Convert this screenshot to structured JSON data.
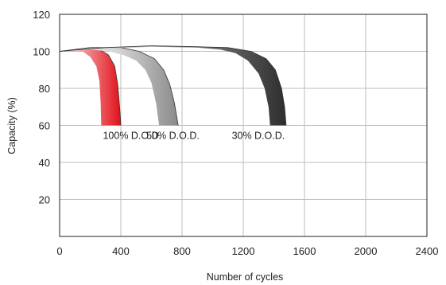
{
  "chart_data": {
    "type": "area",
    "xlabel": "Number of cycles",
    "ylabel": "Capacity (%)",
    "xlim": [
      0,
      2400
    ],
    "ylim": [
      0,
      120
    ],
    "x_ticks": [
      0,
      400,
      800,
      1200,
      1600,
      2000,
      2400
    ],
    "y_ticks": [
      20,
      40,
      60,
      80,
      100,
      120
    ],
    "grid": true,
    "series": [
      {
        "name": "100% D.O.D.",
        "color": "#e8141c",
        "upper": [
          [
            0,
            100
          ],
          [
            100,
            101
          ],
          [
            200,
            102
          ],
          [
            260,
            101
          ],
          [
            320,
            98
          ],
          [
            360,
            92
          ],
          [
            380,
            82
          ],
          [
            392,
            70
          ],
          [
            400,
            60
          ]
        ],
        "lower": [
          [
            0,
            100
          ],
          [
            80,
            100.5
          ],
          [
            150,
            100
          ],
          [
            200,
            97
          ],
          [
            240,
            92
          ],
          [
            260,
            84
          ],
          [
            268,
            72
          ],
          [
            272,
            60
          ]
        ]
      },
      {
        "name": "50% D.O.D.",
        "color": "#a8a8a8",
        "upper": [
          [
            0,
            100
          ],
          [
            200,
            102
          ],
          [
            400,
            102
          ],
          [
            520,
            100
          ],
          [
            620,
            96
          ],
          [
            680,
            90
          ],
          [
            720,
            82
          ],
          [
            750,
            72
          ],
          [
            775,
            60
          ]
        ],
        "lower": [
          [
            0,
            100
          ],
          [
            200,
            101
          ],
          [
            320,
            100
          ],
          [
            420,
            98
          ],
          [
            500,
            95
          ],
          [
            560,
            90
          ],
          [
            600,
            83
          ],
          [
            630,
            72
          ],
          [
            650,
            60
          ]
        ]
      },
      {
        "name": "30% D.O.D.",
        "color": "#555555",
        "upper": [
          [
            0,
            100
          ],
          [
            300,
            102
          ],
          [
            600,
            103
          ],
          [
            900,
            102.5
          ],
          [
            1100,
            102
          ],
          [
            1250,
            100
          ],
          [
            1350,
            96
          ],
          [
            1410,
            90
          ],
          [
            1450,
            80
          ],
          [
            1470,
            70
          ],
          [
            1480,
            60
          ]
        ],
        "lower": [
          [
            0,
            100
          ],
          [
            300,
            101.5
          ],
          [
            600,
            102.5
          ],
          [
            900,
            102
          ],
          [
            1050,
            101
          ],
          [
            1150,
            99
          ],
          [
            1230,
            95
          ],
          [
            1300,
            88
          ],
          [
            1340,
            80
          ],
          [
            1365,
            70
          ],
          [
            1375,
            60
          ]
        ]
      }
    ],
    "annotations": [
      "100% D.O.D.",
      "50% D.O.D.",
      "30% D.O.D."
    ]
  }
}
